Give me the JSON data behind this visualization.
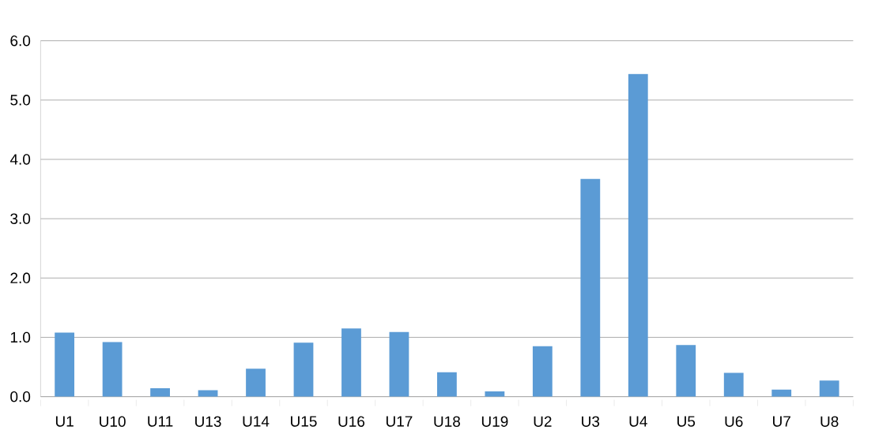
{
  "chart_data": {
    "type": "bar",
    "categories": [
      "U1",
      "U10",
      "U11",
      "U13",
      "U14",
      "U15",
      "U16",
      "U17",
      "U18",
      "U19",
      "U2",
      "U3",
      "U4",
      "U5",
      "U6",
      "U7",
      "U8"
    ],
    "values": [
      1.08,
      0.92,
      0.14,
      0.11,
      0.47,
      0.91,
      1.15,
      1.09,
      0.41,
      0.09,
      0.85,
      3.67,
      5.44,
      0.87,
      0.4,
      0.12,
      0.27
    ],
    "color": "#5b9bd5",
    "ylim": [
      0,
      6
    ],
    "yticks": [
      {
        "value": 0,
        "label": "0.0"
      },
      {
        "value": 1,
        "label": "1.0"
      },
      {
        "value": 2,
        "label": "2.0"
      },
      {
        "value": 3,
        "label": "3.0"
      },
      {
        "value": 4,
        "label": "4.0"
      },
      {
        "value": 5,
        "label": "5.0"
      },
      {
        "value": 6,
        "label": "6.0"
      }
    ],
    "grid": "y"
  }
}
